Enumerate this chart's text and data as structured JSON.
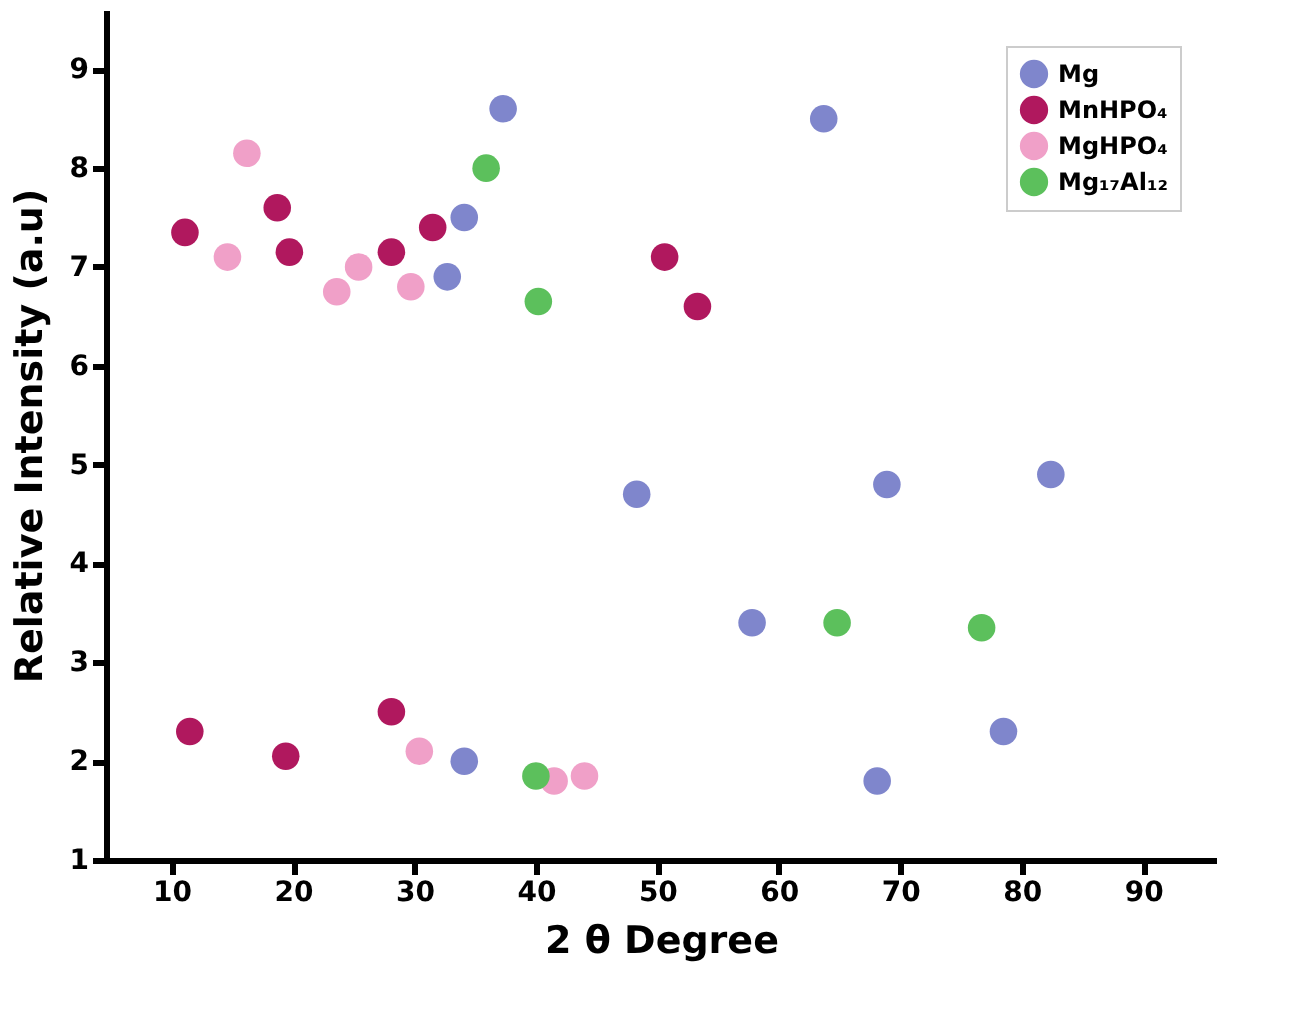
{
  "chart_data": {
    "type": "scatter",
    "xlabel": "2 θ Degree",
    "ylabel": "Relative Intensity (a.u)",
    "xlim": [
      4.6,
      96
    ],
    "ylim": [
      1,
      9.6
    ],
    "xticks": [
      10,
      20,
      30,
      40,
      50,
      60,
      70,
      80,
      90
    ],
    "yticks": [
      1,
      2,
      3,
      4,
      5,
      6,
      7,
      8,
      9
    ],
    "grid": false,
    "legend": "top right",
    "marker": "circle",
    "series": [
      {
        "name": "Mg",
        "color": "#7f86cc",
        "x": [
          37.3,
          34.1,
          32.7,
          48.3,
          63.7,
          68.9,
          82.4,
          57.8,
          78.5,
          68.1,
          34.1
        ],
        "values": [
          8.6,
          7.5,
          6.9,
          4.7,
          8.5,
          4.8,
          4.9,
          3.4,
          2.3,
          1.8,
          2.0
        ]
      },
      {
        "name": "MnHPO₄",
        "color": "#b0185e",
        "x": [
          11.1,
          18.7,
          19.7,
          28.1,
          31.5,
          50.6,
          53.3,
          11.5,
          19.4,
          28.1
        ],
        "values": [
          7.35,
          7.6,
          7.15,
          7.15,
          7.4,
          7.1,
          6.6,
          2.3,
          2.05,
          2.5
        ]
      },
      {
        "name": "MgHPO₄",
        "color": "#f0a0c8",
        "x": [
          16.2,
          14.6,
          23.6,
          25.4,
          29.7,
          30.4,
          41.5,
          44.0
        ],
        "values": [
          8.15,
          7.1,
          6.75,
          7.0,
          6.8,
          2.1,
          1.8,
          1.85
        ]
      },
      {
        "name": "Mg₁₇Al₁₂",
        "color": "#5cc05c",
        "x": [
          35.9,
          40.2,
          40.0,
          64.8,
          76.7
        ],
        "values": [
          8.0,
          6.65,
          1.85,
          3.4,
          3.35
        ]
      }
    ]
  }
}
